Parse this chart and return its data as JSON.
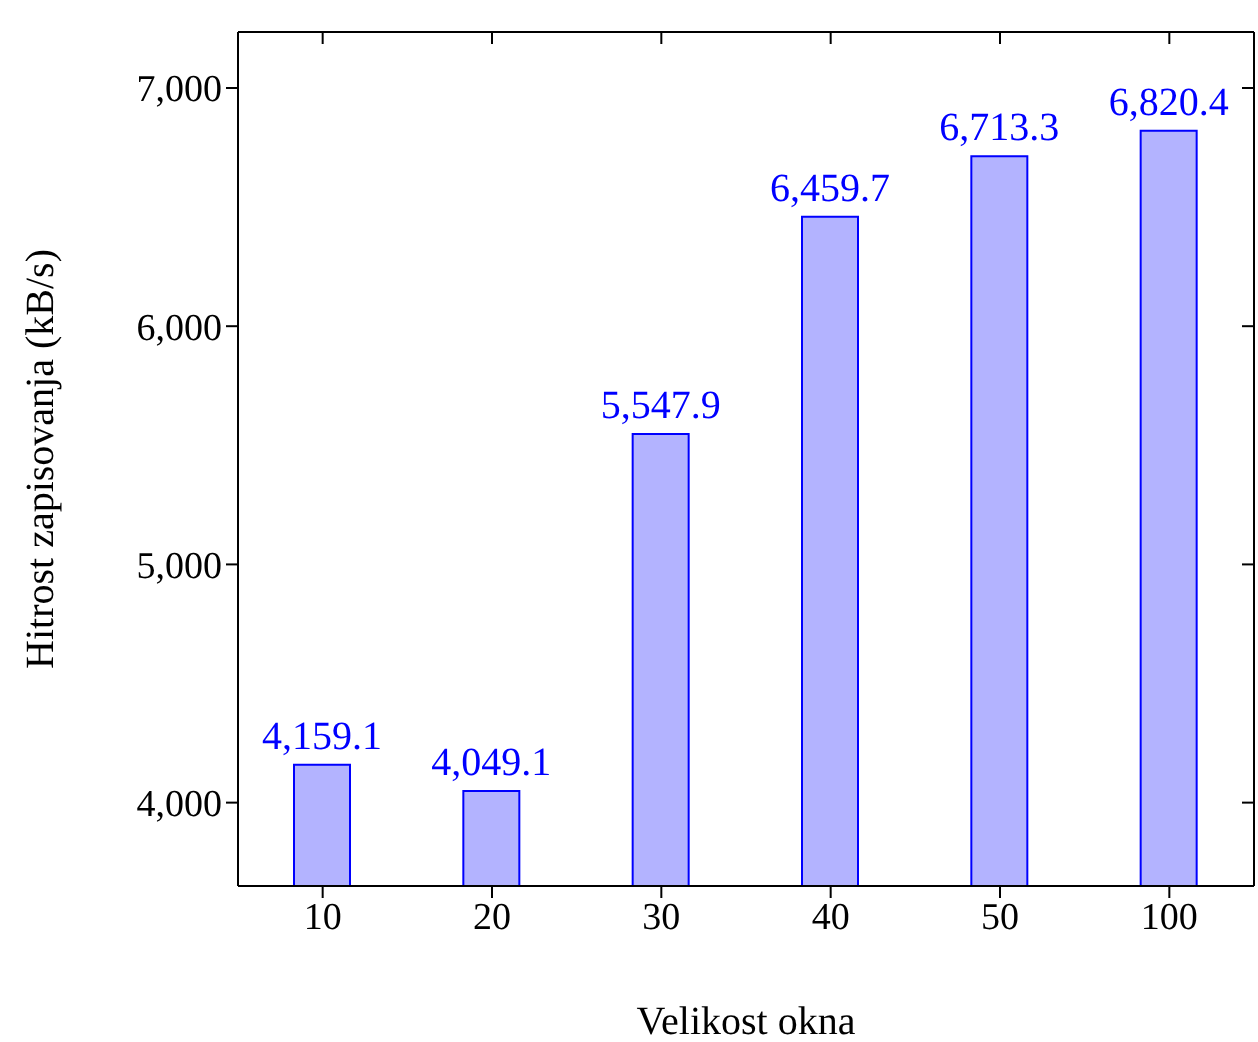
{
  "chart_data": {
    "type": "bar",
    "xlabel": "Velikost okna",
    "ylabel": "Hitrost zapisovanja (kB/s)",
    "categories": [
      "10",
      "20",
      "30",
      "40",
      "50",
      "100"
    ],
    "values": [
      4159.1,
      4049.1,
      5547.9,
      6459.7,
      6713.3,
      6820.4
    ],
    "value_labels": [
      "4,159.1",
      "4,049.1",
      "5,547.9",
      "6,459.7",
      "6,713.3",
      "6,820.4"
    ],
    "color": "#b3b3ff",
    "ylim": [
      3650,
      7235
    ],
    "yticks": [
      {
        "value": 4000,
        "label": "4,000"
      },
      {
        "value": 5000,
        "label": "5,000"
      },
      {
        "value": 6000,
        "label": "6,000"
      },
      {
        "value": 7000,
        "label": "7,000"
      }
    ]
  }
}
